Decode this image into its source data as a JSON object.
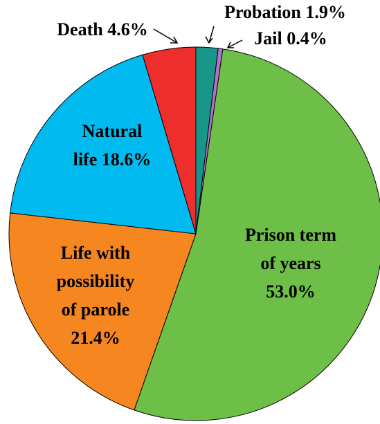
{
  "chart_data": {
    "type": "pie",
    "labels": [
      [
        "Probation 1.9%"
      ],
      [
        "Jail 0.4%"
      ],
      [
        "Prison term",
        "of years",
        "53.0%"
      ],
      [
        "Life with",
        "possibility",
        "of parole",
        "21.4%"
      ],
      [
        "Natural",
        "life 18.6%"
      ],
      [
        "Death 4.6%"
      ]
    ],
    "values": [
      1.9,
      0.4,
      53.0,
      21.4,
      18.6,
      4.6
    ],
    "colors": [
      "#16978a",
      "#b56fd0",
      "#6dbf47",
      "#f6861f",
      "#00baf0",
      "#ee2d2d"
    ]
  }
}
